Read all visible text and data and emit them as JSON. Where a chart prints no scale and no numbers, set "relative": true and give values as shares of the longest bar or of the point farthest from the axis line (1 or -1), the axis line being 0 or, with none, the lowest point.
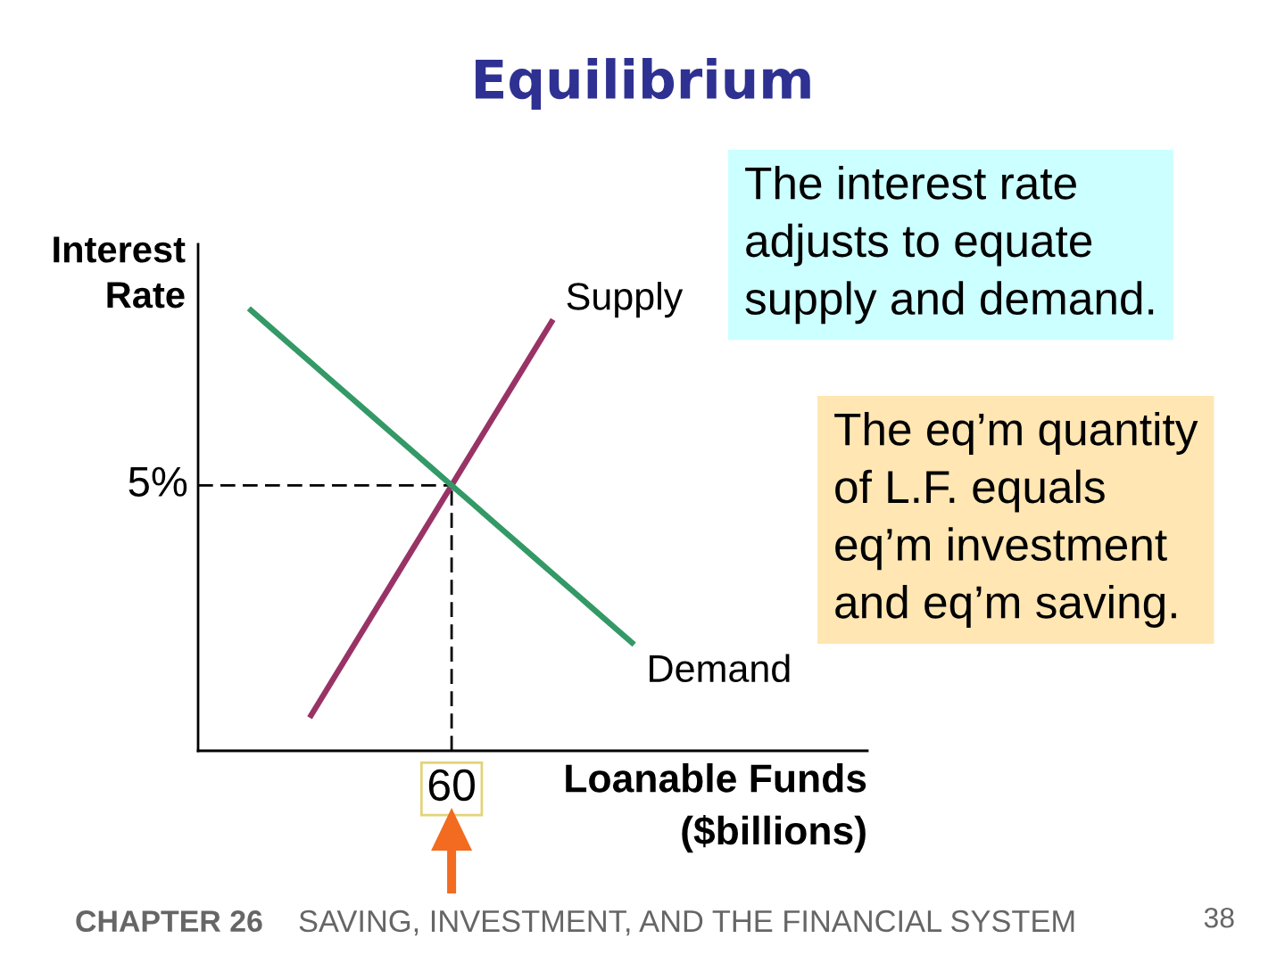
{
  "chart_data": {
    "type": "line",
    "title": "Equilibrium",
    "xlabel": "Loanable Funds\n($billions)",
    "ylabel": "Interest\nRate",
    "relative": true,
    "categories": [
      null,
      null,
      null,
      null,
      null,
      null,
      null,
      null,
      null,
      null,
      null,
      null,
      null,
      null,
      null,
      null,
      null,
      null,
      null,
      null,
      null,
      null,
      null,
      null,
      null,
      null,
      null,
      null,
      null,
      null,
      null,
      null,
      null
    ],
    "series": [
      {
        "name": "Supply",
        "color": "#993366",
        "values": [
          null,
          null,
          null,
          null,
          null,
          0.075,
          0.15,
          0.225,
          0.3,
          0.375,
          0.45,
          0.525,
          0.6,
          0.675,
          0.75,
          0.825,
          0.9,
          0.975,
          null,
          null,
          null,
          null,
          null,
          null,
          null,
          null,
          null,
          null,
          null,
          null,
          null,
          null,
          null
        ]
      },
      {
        "name": "Demand",
        "color": "#339966",
        "values": [
          null,
          null,
          1.0,
          0.96,
          0.92,
          0.88,
          0.84,
          0.8,
          0.76,
          0.72,
          0.68,
          0.64,
          0.6,
          0.56,
          0.52,
          0.48,
          0.44,
          0.4,
          0.36,
          0.32,
          0.28,
          0.24,
          null,
          null,
          null,
          null,
          null,
          null,
          null,
          null,
          null,
          null,
          null
        ]
      }
    ],
    "ref_lines": [
      {
        "axis": "y",
        "value": 0.6,
        "line_style": "dashed",
        "color": "#000000"
      }
    ],
    "annotations": [
      "5%",
      "60",
      "The interest rate\nadjusts to equate\nsupply and demand.",
      "The eq’m quantity\nof L.F. equals\neq’m investment\nand eq’m saving.",
      "CHAPTER 26",
      "SAVING, INVESTMENT, AND THE FINANCIAL SYSTEM",
      "38"
    ],
    "marker": "none",
    "line_style": "solid"
  }
}
